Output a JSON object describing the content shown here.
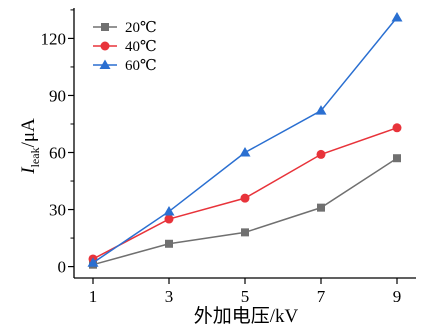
{
  "chart_data": {
    "type": "line",
    "title": "",
    "xlabel": "外加电压/kV",
    "ylabel": {
      "main": "I",
      "subscript": "leak",
      "unit": "/μA"
    },
    "x": [
      1,
      3,
      5,
      7,
      9
    ],
    "xlim": [
      0.5,
      9.5
    ],
    "ylim": [
      -6,
      136
    ],
    "xticks": [
      1,
      3,
      5,
      7,
      9
    ],
    "yticks": [
      0,
      30,
      60,
      90,
      120
    ],
    "grid": false,
    "legend": "top-left",
    "series": [
      {
        "name": "20℃",
        "color": "#707070",
        "marker": "square",
        "values": [
          1,
          12,
          18,
          31,
          57
        ]
      },
      {
        "name": "40℃",
        "color": "#e8333a",
        "marker": "circle",
        "values": [
          4,
          25,
          36,
          59,
          73
        ]
      },
      {
        "name": "60℃",
        "color": "#2a6fd1",
        "marker": "triangle",
        "values": [
          2,
          29,
          60,
          82,
          131
        ]
      }
    ]
  }
}
